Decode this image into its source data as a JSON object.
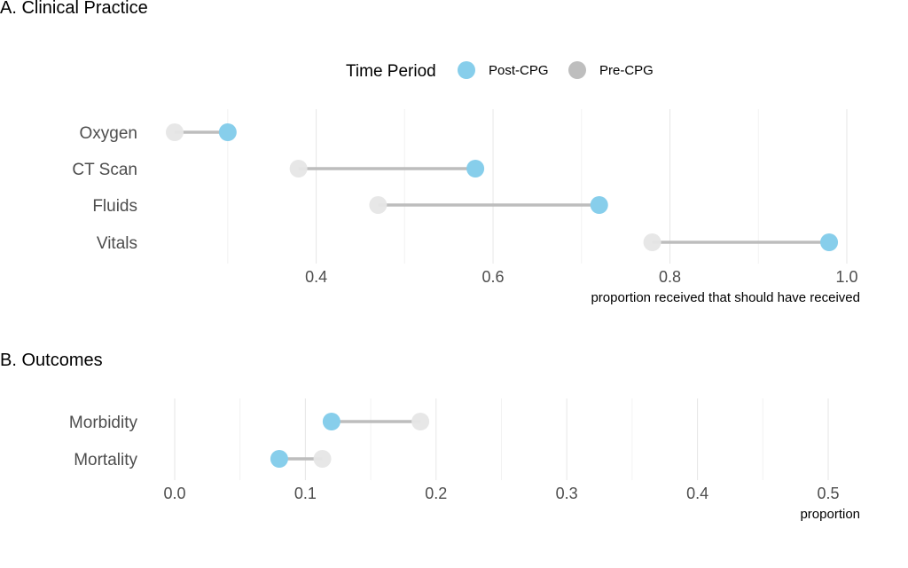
{
  "legend": {
    "title": "Time Period",
    "items": [
      {
        "label": "Post-CPG",
        "color": "#87CEEB"
      },
      {
        "label": "Pre-CPG",
        "color": "#BEBEBE"
      }
    ]
  },
  "colors": {
    "post": "#87CEEB",
    "pre": "#E6E6E6",
    "pre_legend": "#BEBEBE",
    "segment": "#BDBDBD"
  },
  "chart_data": [
    {
      "type": "dumbbell",
      "title": "A. Clinical Practice",
      "xlabel": "proportion received that should have received",
      "xlim": [
        0.24,
        1.0
      ],
      "xticks": [
        0.4,
        0.6,
        0.8,
        1.0
      ],
      "xtick_labels": [
        "0.4",
        "0.6",
        "0.8",
        "1.0"
      ],
      "categories": [
        "Oxygen",
        "CT Scan",
        "Fluids",
        "Vitals"
      ],
      "series": [
        {
          "name": "Pre-CPG",
          "values": [
            0.24,
            0.38,
            0.47,
            0.78
          ]
        },
        {
          "name": "Post-CPG",
          "values": [
            0.3,
            0.58,
            0.72,
            0.98
          ]
        }
      ],
      "grid": true,
      "legend_position": "top"
    },
    {
      "type": "dumbbell",
      "title": "B. Outcomes",
      "xlabel": "proportion",
      "xlim": [
        0.0,
        0.5
      ],
      "xticks": [
        0.0,
        0.1,
        0.2,
        0.3,
        0.4,
        0.5
      ],
      "xtick_labels": [
        "0.0",
        "0.1",
        "0.2",
        "0.3",
        "0.4",
        "0.5"
      ],
      "categories": [
        "Morbidity",
        "Mortality"
      ],
      "series": [
        {
          "name": "Pre-CPG",
          "values": [
            0.188,
            0.113
          ]
        },
        {
          "name": "Post-CPG",
          "values": [
            0.12,
            0.08
          ]
        }
      ],
      "grid": true
    }
  ]
}
